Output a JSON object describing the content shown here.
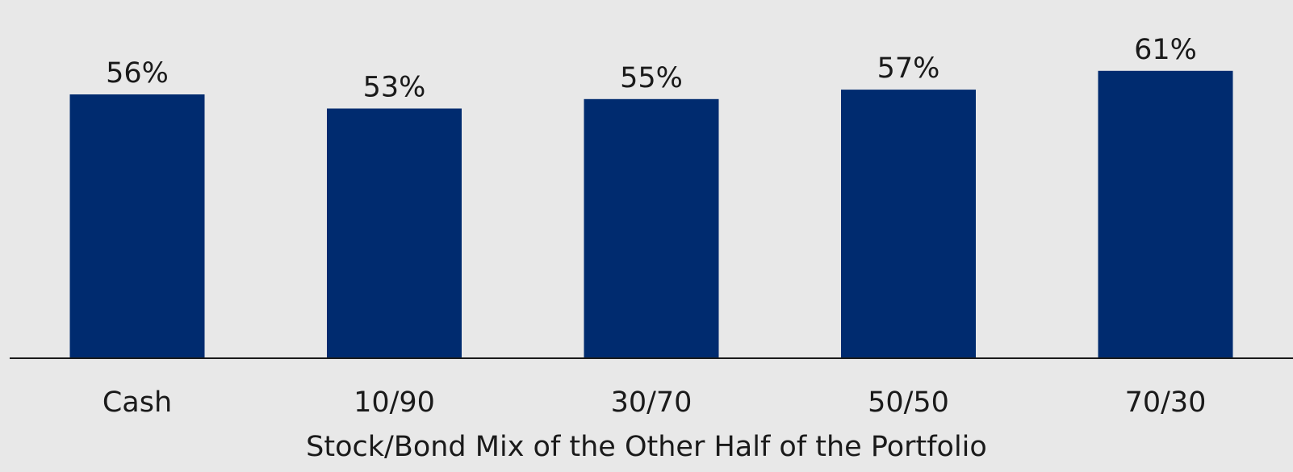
{
  "chart_data": {
    "type": "bar",
    "categories": [
      "Cash",
      "10/90",
      "30/70",
      "50/50",
      "70/30"
    ],
    "values": [
      56,
      53,
      55,
      57,
      61
    ],
    "value_labels": [
      "56%",
      "53%",
      "55%",
      "57%",
      "61%"
    ],
    "xlabel": "Stock/Bond Mix of the Other Half of the Portfolio",
    "ylabel": "",
    "ylim": [
      0,
      70
    ],
    "grid": false,
    "legend": "none",
    "colors": {
      "bar": "#002b6f",
      "background": "#e8e8e8",
      "axis": "#1a1a1a",
      "text": "#1a1a1a"
    }
  }
}
